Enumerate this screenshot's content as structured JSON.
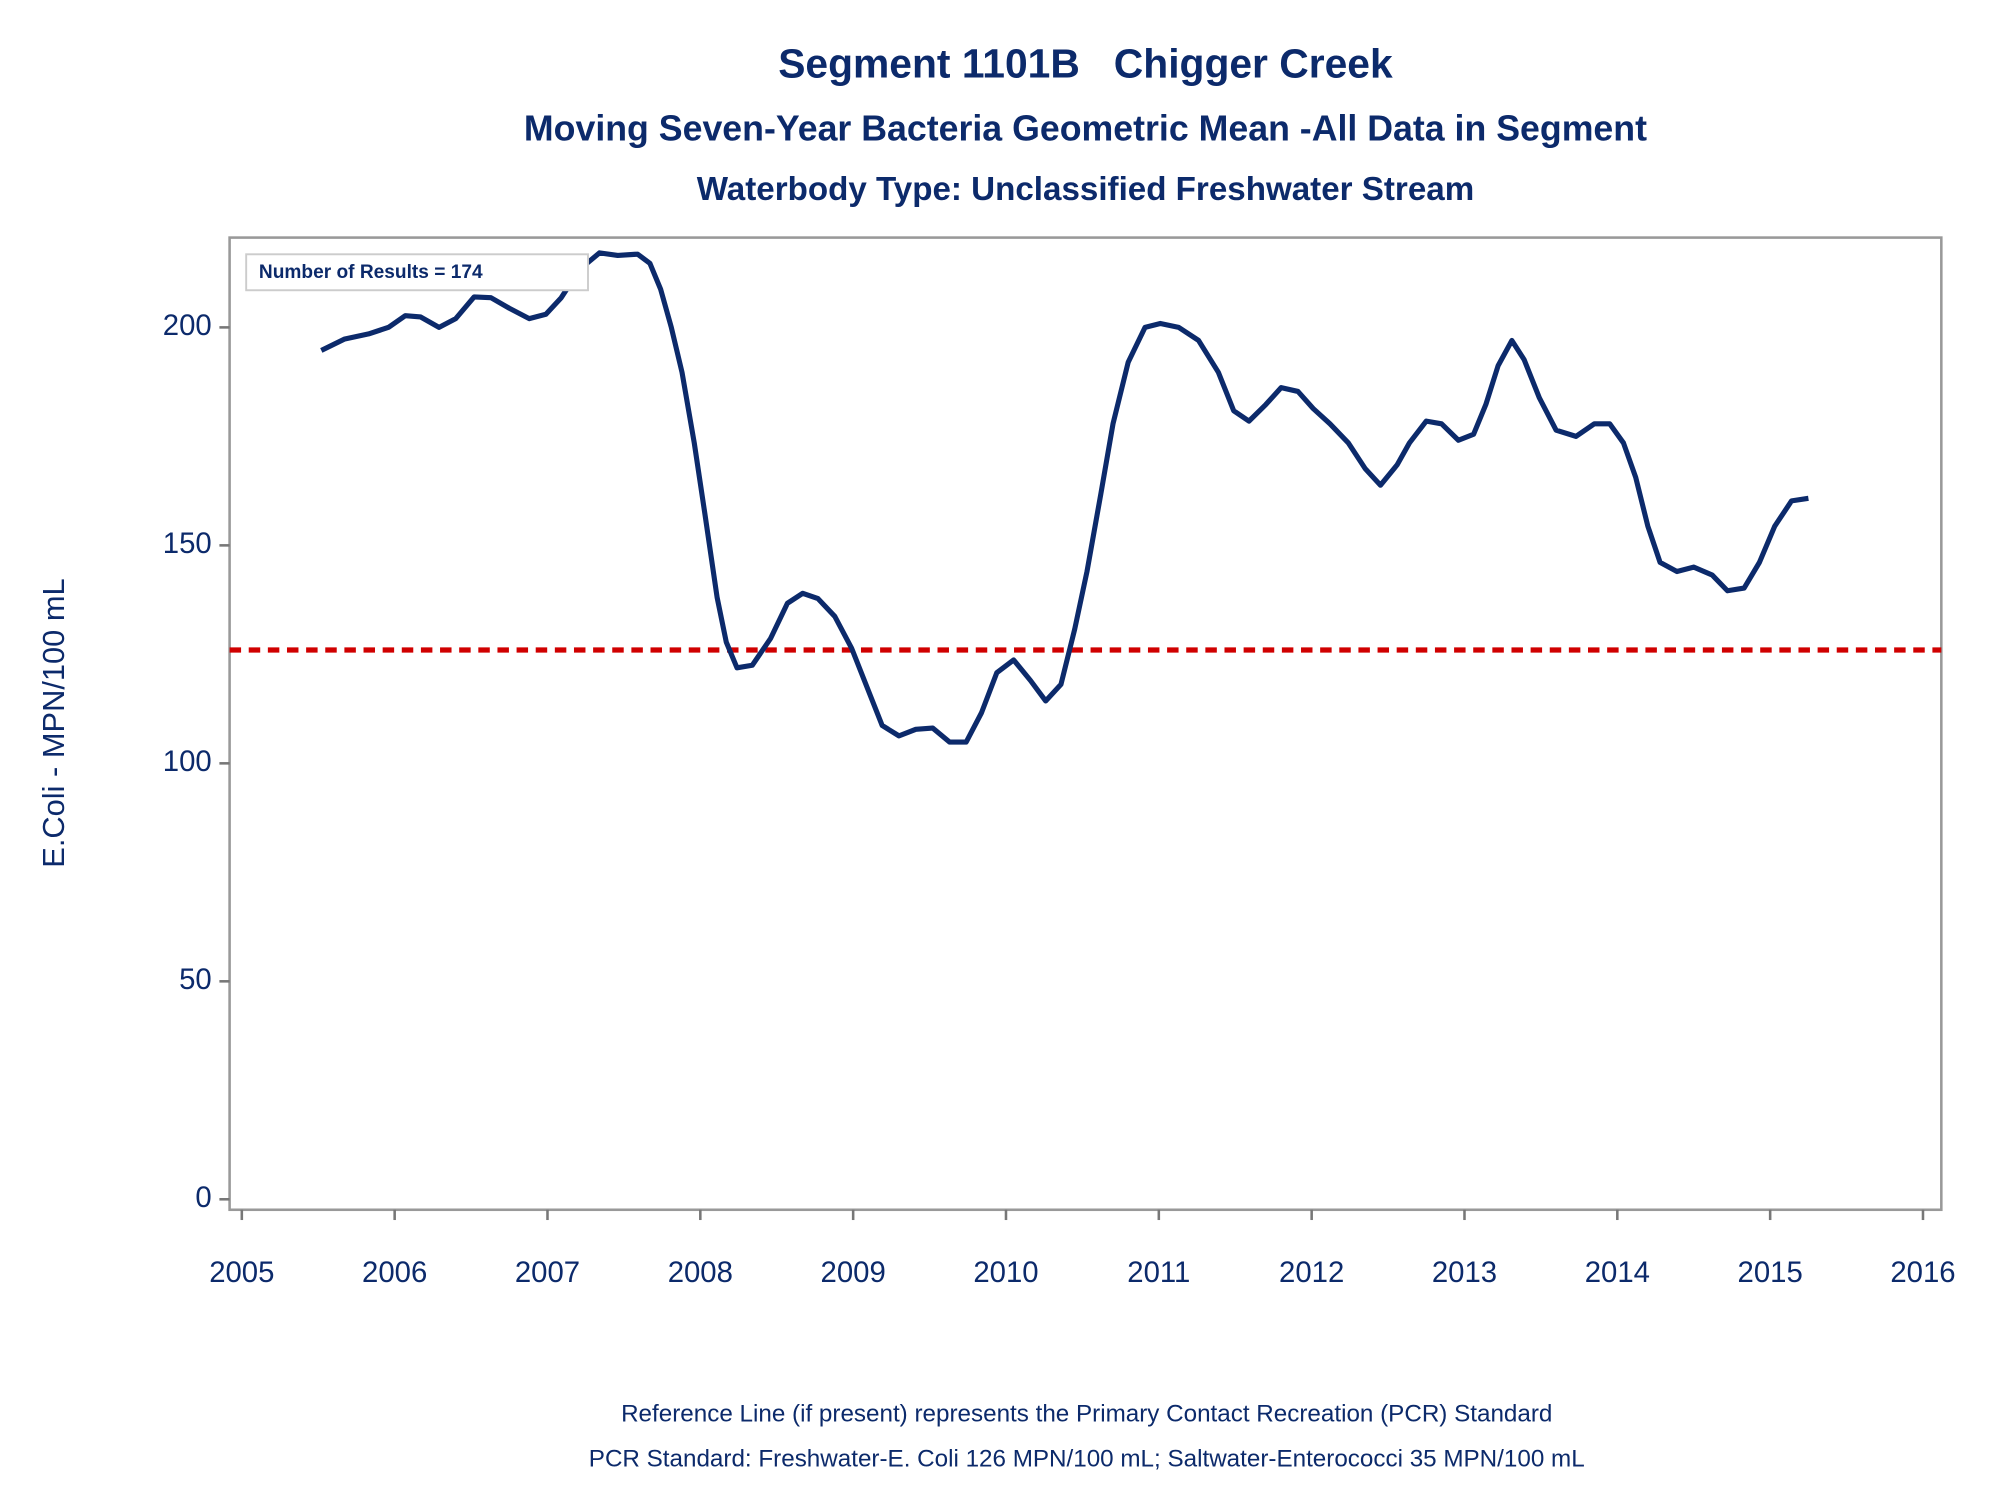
{
  "chart_data": {
    "type": "line",
    "title": "Segment 1101B   Chigger Creek",
    "subtitle": "Moving Seven-Year Bacteria Geometric Mean -All Data in Segment",
    "subtitle2": "Waterbody Type: Unclassified Freshwater Stream",
    "ylabel": "E.Coli - MPN/100 mL",
    "annotation": "Number of Results = 174",
    "footnotes": [
      "Reference Line (if present) represents the Primary Contact Recreation (PCR) Standard",
      "PCR Standard: Freshwater-E. Coli 126 MPN/100 mL; Saltwater-Enterococci 35 MPN/100 mL"
    ],
    "reference_line": {
      "value": 126,
      "color": "#d00000"
    },
    "xlim": [
      2004.92,
      2016.12
    ],
    "ylim": [
      -2.4,
      220.6
    ],
    "xticks": [
      2005,
      2006,
      2007,
      2008,
      2009,
      2010,
      2011,
      2012,
      2013,
      2014,
      2015,
      2016
    ],
    "yticks": [
      0,
      50,
      100,
      150,
      200
    ],
    "series": [
      {
        "color": "#0c2a6b",
        "x": [
          2005.52,
          2005.67,
          2005.83,
          2005.96,
          2006.07,
          2006.17,
          2006.29,
          2006.4,
          2006.52,
          2006.63,
          2006.75,
          2006.88,
          2006.99,
          2007.09,
          2007.21,
          2007.34,
          2007.46,
          2007.59,
          2007.67,
          2007.74,
          2007.81,
          2007.88,
          2007.96,
          2008.03,
          2008.11,
          2008.17,
          2008.24,
          2008.34,
          2008.46,
          2008.57,
          2008.67,
          2008.77,
          2008.88,
          2008.99,
          2009.09,
          2009.19,
          2009.3,
          2009.41,
          2009.52,
          2009.63,
          2009.74,
          2009.84,
          2009.94,
          2010.05,
          2010.16,
          2010.26,
          2010.36,
          2010.45,
          2010.53,
          2010.62,
          2010.7,
          2010.8,
          2010.91,
          2011.01,
          2011.13,
          2011.26,
          2011.39,
          2011.49,
          2011.59,
          2011.7,
          2011.8,
          2011.91,
          2012.01,
          2012.12,
          2012.24,
          2012.35,
          2012.45,
          2012.56,
          2012.64,
          2012.75,
          2012.85,
          2012.96,
          2013.06,
          2013.14,
          2013.22,
          2013.31,
          2013.39,
          2013.49,
          2013.6,
          2013.73,
          2013.85,
          2013.95,
          2014.04,
          2014.12,
          2014.2,
          2014.28,
          2014.39,
          2014.5,
          2014.62,
          2014.72,
          2014.83,
          2014.93,
          2015.03,
          2015.14,
          2015.25
        ],
        "values": [
          194.7,
          197.3,
          198.5,
          200,
          202.7,
          202.4,
          200,
          202,
          207,
          206.8,
          204.4,
          202,
          203,
          206.8,
          213.3,
          217.1,
          216.5,
          216.8,
          214.7,
          208.8,
          200,
          189.7,
          173.5,
          157.3,
          138.1,
          127.8,
          121.9,
          122.5,
          128.7,
          136.7,
          139,
          137.8,
          133.7,
          126.4,
          117.5,
          108.7,
          106.3,
          107.8,
          108.1,
          104.9,
          104.9,
          111.6,
          120.8,
          123.7,
          119,
          114.3,
          118.1,
          130.8,
          144,
          161.7,
          177.9,
          192,
          200,
          200.9,
          200,
          197,
          189.7,
          180.9,
          178.5,
          182.3,
          186.2,
          185.3,
          181.4,
          177.9,
          173.5,
          167.6,
          163.8,
          168.5,
          173.5,
          178.5,
          177.9,
          174.1,
          175.5,
          182.3,
          191.2,
          197,
          192.6,
          183.8,
          176.4,
          175,
          177.9,
          177.9,
          173.5,
          165.6,
          154.4,
          146.1,
          144,
          145,
          143.2,
          139.6,
          140.2,
          146.1,
          154.4,
          160.2,
          160.8
        ]
      }
    ]
  }
}
